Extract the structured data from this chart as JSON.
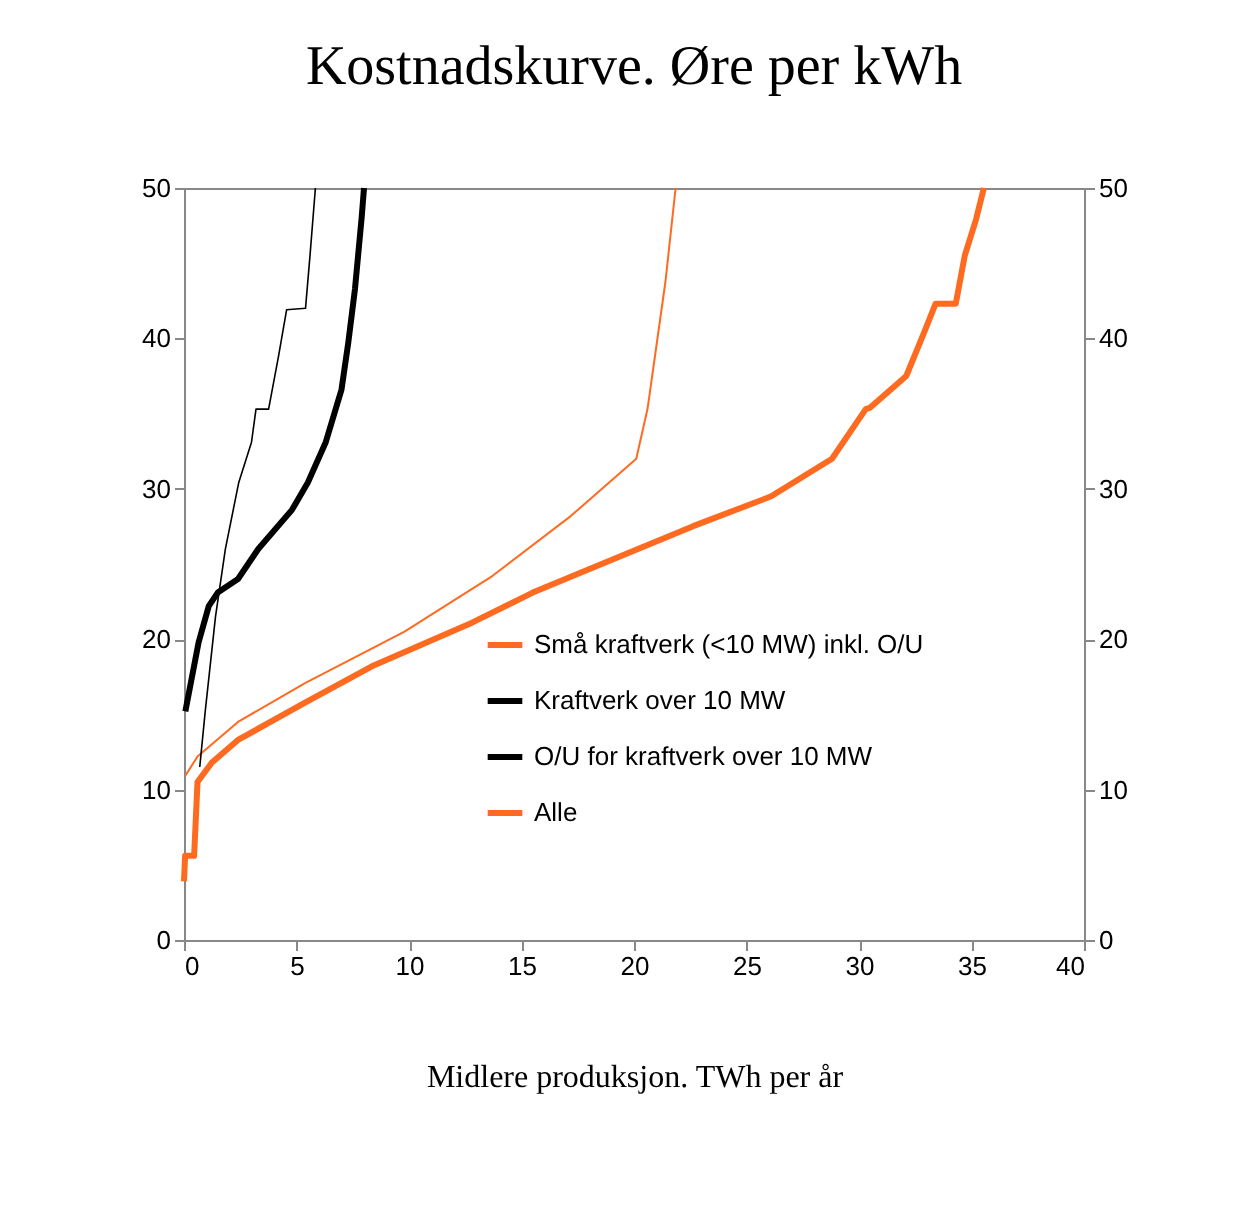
{
  "chart_data": {
    "type": "line",
    "title": "Kostnadskurve. Øre per kWh",
    "xlabel": "Midlere produksjon. TWh per år",
    "xlim": [
      0,
      40
    ],
    "xticks": [
      0,
      5,
      10,
      15,
      20,
      25,
      30,
      35,
      40
    ],
    "ylim": [
      0,
      50
    ],
    "yticks": [
      0,
      10,
      20,
      30,
      40,
      50
    ],
    "y2lim": [
      0,
      50
    ],
    "y2ticks": [
      0,
      10,
      20,
      30,
      40,
      50
    ],
    "grid": false,
    "legend": "right",
    "marker": "none",
    "line_style": "solid",
    "series": [
      {
        "name": "Små kraftverk (<10 MW) inkl. O/U",
        "color": "#ff6a21",
        "x": [
          0.05,
          0.6,
          2.4,
          5.4,
          9.8,
          13.7,
          17.2,
          20.1,
          20.6,
          21.4,
          21.85
        ],
        "values": [
          10.9,
          12.2,
          14.5,
          17.1,
          20.5,
          24.2,
          28.2,
          32.0,
          35.3,
          43.8,
          50
        ]
      },
      {
        "name": "Kraftverk over 10 MW",
        "color": "#000000",
        "x": [
          0.06,
          0.65,
          1.1,
          1.5,
          2.4,
          3.3,
          4.8,
          5.5,
          6.3,
          7.0,
          7.3,
          7.6,
          7.9,
          8.0
        ],
        "values": [
          15.2,
          19.8,
          22.2,
          23.1,
          24.0,
          26.0,
          28.6,
          30.4,
          33.1,
          36.6,
          39.7,
          43.3,
          48.1,
          50
        ]
      },
      {
        "name": "O/U for kraftverk over 10 MW",
        "color": "#000000",
        "x": [
          0.7,
          0.95,
          1.4,
          1.84,
          2.43,
          3.0,
          3.2,
          3.76,
          4.2,
          4.56,
          5.4,
          5.6,
          5.84
        ],
        "values": [
          11.5,
          15.3,
          21.5,
          26.0,
          30.4,
          33.1,
          35.3,
          35.3,
          38.8,
          41.9,
          42.0,
          45.5,
          50
        ]
      },
      {
        "name": "Alle",
        "color": "#ff6a21",
        "x": [
          0.0,
          0.05,
          0.45,
          0.6,
          1.24,
          2.4,
          5.4,
          8.35,
          12.8,
          15.5,
          18.4,
          22.6,
          26.1,
          28.8,
          30.3,
          30.5,
          32.1,
          32.95,
          33.4,
          34.3,
          34.7,
          35.2,
          35.55
        ],
        "values": [
          3.9,
          5.6,
          5.6,
          10.5,
          11.8,
          13.3,
          15.8,
          18.2,
          21.1,
          23.1,
          24.9,
          27.5,
          29.5,
          32.0,
          35.3,
          35.4,
          37.5,
          40.6,
          42.3,
          42.3,
          45.5,
          47.9,
          50
        ]
      }
    ]
  }
}
